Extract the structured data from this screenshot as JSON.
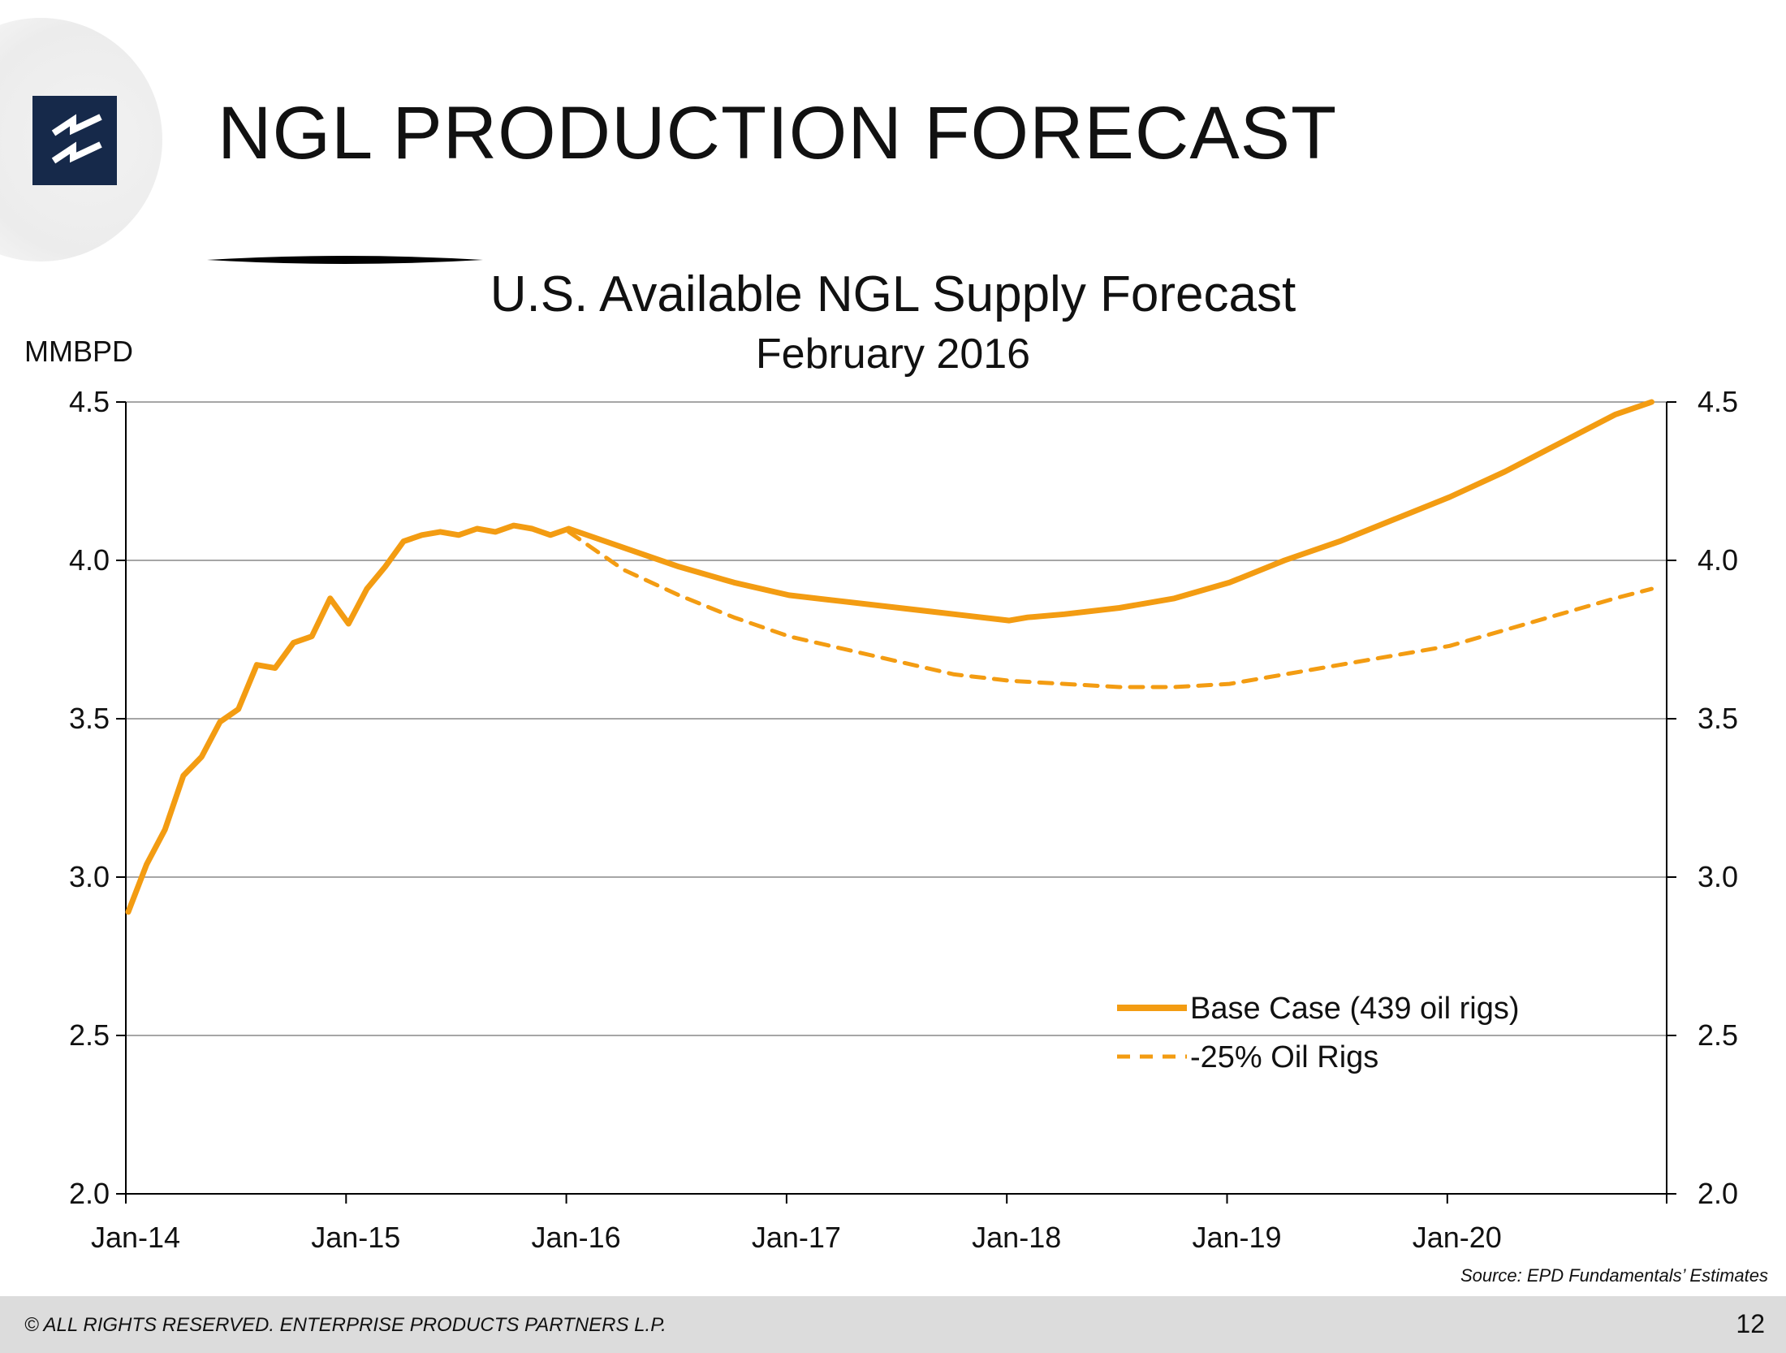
{
  "slide": {
    "title": "NGL PRODUCTION FORECAST",
    "source": "Source:  EPD Fundamentals’ Estimates",
    "footer": "© ALL RIGHTS RESERVED. ENTERPRISE PRODUCTS PARTNERS L.P.",
    "page_number": "12"
  },
  "colors": {
    "line": "#F39C12",
    "logo": "#16294A",
    "footer_bg": "#DCDCDC",
    "grid": "#888888"
  },
  "chart_data": {
    "type": "line",
    "title": "U.S. Available NGL Supply Forecast",
    "subtitle": "February 2016",
    "ylabel": "MMBPD",
    "ylim": [
      2.0,
      4.5
    ],
    "y_ticks": [
      "2.0",
      "2.5",
      "3.0",
      "3.5",
      "4.0",
      "4.5"
    ],
    "secondary_y_axis": true,
    "x_ticks": [
      "Jan-14",
      "Jan-15",
      "Jan-16",
      "Jan-17",
      "Jan-18",
      "Jan-19",
      "Jan-20"
    ],
    "x_range": [
      "2014-01",
      "2020-12"
    ],
    "grid": true,
    "legend_position": "lower-right",
    "series": [
      {
        "name": "Base Case (439 oil rigs)",
        "style": "solid",
        "points": [
          [
            "2014-01",
            2.89
          ],
          [
            "2014-02",
            3.04
          ],
          [
            "2014-03",
            3.15
          ],
          [
            "2014-04",
            3.32
          ],
          [
            "2014-05",
            3.38
          ],
          [
            "2014-06",
            3.49
          ],
          [
            "2014-07",
            3.53
          ],
          [
            "2014-08",
            3.67
          ],
          [
            "2014-09",
            3.66
          ],
          [
            "2014-10",
            3.74
          ],
          [
            "2014-11",
            3.76
          ],
          [
            "2014-12",
            3.88
          ],
          [
            "2015-01",
            3.8
          ],
          [
            "2015-02",
            3.91
          ],
          [
            "2015-03",
            3.98
          ],
          [
            "2015-04",
            4.06
          ],
          [
            "2015-05",
            4.08
          ],
          [
            "2015-06",
            4.09
          ],
          [
            "2015-07",
            4.08
          ],
          [
            "2015-08",
            4.1
          ],
          [
            "2015-09",
            4.09
          ],
          [
            "2015-10",
            4.11
          ],
          [
            "2015-11",
            4.1
          ],
          [
            "2015-12",
            4.08
          ],
          [
            "2016-01",
            4.1
          ],
          [
            "2016-04",
            4.04
          ],
          [
            "2016-07",
            3.98
          ],
          [
            "2016-10",
            3.93
          ],
          [
            "2017-01",
            3.89
          ],
          [
            "2017-04",
            3.87
          ],
          [
            "2017-07",
            3.85
          ],
          [
            "2017-10",
            3.83
          ],
          [
            "2018-01",
            3.81
          ],
          [
            "2018-02",
            3.82
          ],
          [
            "2018-04",
            3.83
          ],
          [
            "2018-07",
            3.85
          ],
          [
            "2018-10",
            3.88
          ],
          [
            "2019-01",
            3.93
          ],
          [
            "2019-04",
            4.0
          ],
          [
            "2019-07",
            4.06
          ],
          [
            "2019-10",
            4.13
          ],
          [
            "2020-01",
            4.2
          ],
          [
            "2020-04",
            4.28
          ],
          [
            "2020-07",
            4.37
          ],
          [
            "2020-10",
            4.46
          ],
          [
            "2020-12",
            4.5
          ]
        ]
      },
      {
        "name": "-25% Oil Rigs",
        "style": "dashed",
        "points": [
          [
            "2016-01",
            4.09
          ],
          [
            "2016-04",
            3.97
          ],
          [
            "2016-07",
            3.89
          ],
          [
            "2016-10",
            3.82
          ],
          [
            "2017-01",
            3.76
          ],
          [
            "2017-04",
            3.72
          ],
          [
            "2017-07",
            3.68
          ],
          [
            "2017-10",
            3.64
          ],
          [
            "2018-01",
            3.62
          ],
          [
            "2018-04",
            3.61
          ],
          [
            "2018-07",
            3.6
          ],
          [
            "2018-10",
            3.6
          ],
          [
            "2019-01",
            3.61
          ],
          [
            "2019-04",
            3.64
          ],
          [
            "2019-07",
            3.67
          ],
          [
            "2019-10",
            3.7
          ],
          [
            "2020-01",
            3.73
          ],
          [
            "2020-04",
            3.78
          ],
          [
            "2020-07",
            3.83
          ],
          [
            "2020-10",
            3.88
          ],
          [
            "2020-12",
            3.91
          ]
        ]
      }
    ]
  }
}
